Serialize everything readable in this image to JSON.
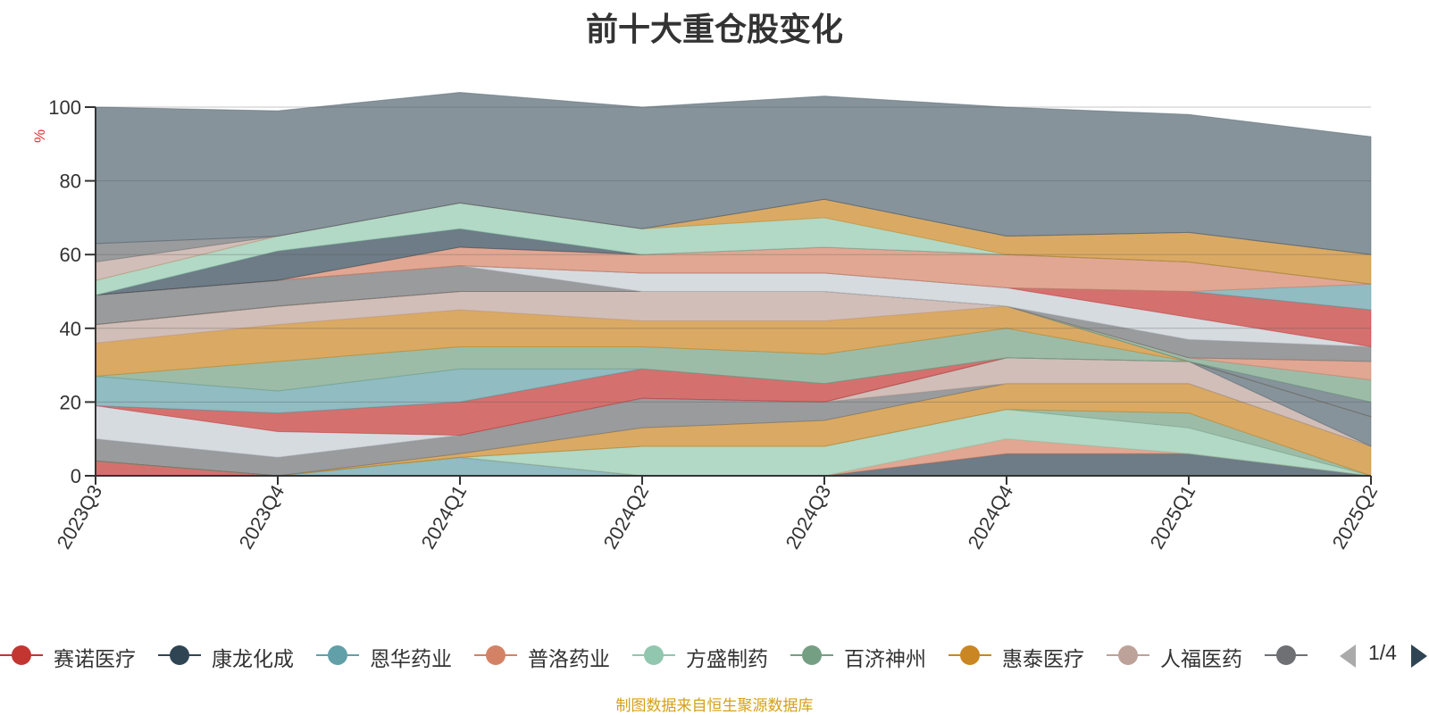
{
  "title": "前十大重仓股变化",
  "source_note": "制图数据来自恒生聚源数据库",
  "pager": {
    "text": "1/4"
  },
  "chart_data": {
    "type": "area",
    "stacked": true,
    "normalized_percent": true,
    "ylabel": "%",
    "ylim": [
      0,
      100
    ],
    "yticks": [
      0,
      20,
      40,
      60,
      80,
      100
    ],
    "grid": true,
    "legend_placement": "bottom",
    "categories": [
      "2023Q3",
      "2023Q4",
      "2024Q1",
      "2024Q2",
      "2024Q3",
      "2024Q4",
      "2025Q1",
      "2025Q2"
    ],
    "series": [
      {
        "name": "",
        "color": "#c23531",
        "values": [
          4,
          0,
          0,
          0,
          0,
          0,
          0,
          0
        ]
      },
      {
        "name": "",
        "color": "#61a0a8",
        "values": [
          0,
          0,
          5,
          0,
          0,
          0,
          0,
          0
        ]
      },
      {
        "name": "",
        "color": "#2f4554",
        "values": [
          0,
          0,
          0,
          0,
          0,
          6,
          6,
          0
        ]
      },
      {
        "name": "",
        "color": "#d48265",
        "values": [
          0,
          0,
          0,
          0,
          0,
          4,
          0,
          0
        ]
      },
      {
        "name": "",
        "color": "#91c7ae",
        "values": [
          0,
          0,
          0,
          8,
          8,
          8,
          7,
          0
        ]
      },
      {
        "name": "",
        "color": "#749f83",
        "values": [
          0,
          0,
          0,
          0,
          0,
          0,
          4,
          0
        ]
      },
      {
        "name": "",
        "color": "#ca8622",
        "values": [
          0,
          0,
          1,
          5,
          7,
          7,
          8,
          8
        ]
      },
      {
        "name": "",
        "color": "#6e7074",
        "values": [
          6,
          5,
          5,
          8,
          5,
          0,
          0,
          0
        ]
      },
      {
        "name": "",
        "color": "#bda29a",
        "values": [
          0,
          0,
          0,
          0,
          0,
          7,
          6,
          0
        ]
      },
      {
        "name": "",
        "color": "#546570",
        "values": [
          0,
          0,
          0,
          0,
          0,
          0,
          0,
          8
        ]
      },
      {
        "name": "",
        "color": "#c4ccd3",
        "values": [
          9,
          7,
          0,
          0,
          0,
          0,
          0,
          0
        ]
      },
      {
        "name": "",
        "color": "#c23531",
        "values": [
          0,
          5,
          9,
          8,
          5,
          0,
          0,
          0
        ]
      },
      {
        "name": "",
        "color": "#61a0a8",
        "values": [
          8,
          6,
          9,
          0,
          0,
          0,
          0,
          0
        ]
      },
      {
        "name": "",
        "color": "#749f83",
        "values": [
          0,
          8,
          6,
          6,
          8,
          8,
          0,
          0
        ]
      },
      {
        "name": "",
        "color": "#ca8622",
        "values": [
          9,
          10,
          10,
          7,
          9,
          6,
          0,
          0
        ]
      },
      {
        "name": "",
        "color": "#bda29a",
        "values": [
          5,
          5,
          5,
          8,
          8,
          0,
          0,
          0
        ]
      },
      {
        "name": "",
        "color": "#546570",
        "values": [
          0,
          0,
          0,
          0,
          0,
          0,
          0,
          4
        ]
      },
      {
        "name": "",
        "color": "#749f83",
        "values": [
          0,
          0,
          0,
          0,
          0,
          0,
          1,
          6
        ]
      },
      {
        "name": "",
        "color": "#d48265",
        "values": [
          0,
          0,
          0,
          0,
          0,
          0,
          0,
          5
        ]
      },
      {
        "name": "",
        "color": "#6e7074",
        "values": [
          8,
          7,
          7,
          0,
          0,
          0,
          5,
          4
        ]
      },
      {
        "name": "",
        "color": "#c4ccd3",
        "values": [
          0,
          0,
          0,
          5,
          5,
          5,
          6,
          0
        ]
      },
      {
        "name": "",
        "color": "#c23531",
        "values": [
          0,
          0,
          0,
          0,
          0,
          0,
          7,
          10
        ]
      },
      {
        "name": "",
        "color": "#61a0a8",
        "values": [
          0,
          0,
          0,
          0,
          0,
          0,
          0,
          7
        ]
      },
      {
        "name": "",
        "color": "#d48265",
        "values": [
          0,
          0,
          5,
          5,
          7,
          9,
          8,
          0
        ]
      },
      {
        "name": "",
        "color": "#2f4554",
        "values": [
          0,
          8,
          5,
          0,
          0,
          0,
          0,
          0
        ]
      },
      {
        "name": "",
        "color": "#91c7ae",
        "values": [
          4,
          4,
          7,
          7,
          8,
          0,
          0,
          0
        ]
      },
      {
        "name": "",
        "color": "#ca8622",
        "values": [
          0,
          0,
          0,
          0,
          5,
          5,
          8,
          8
        ]
      },
      {
        "name": "",
        "color": "#bda29a",
        "values": [
          5,
          0,
          0,
          0,
          0,
          0,
          0,
          0
        ]
      },
      {
        "name": "",
        "color": "#6e7074",
        "values": [
          5,
          0,
          0,
          0,
          0,
          0,
          0,
          0
        ]
      },
      {
        "name": "",
        "color": "#546570",
        "values": [
          37,
          34,
          30,
          33,
          28,
          35,
          32,
          32
        ]
      }
    ],
    "legend": [
      {
        "label": "赛诺医疗",
        "color": "#c23531"
      },
      {
        "label": "康龙化成",
        "color": "#2f4554"
      },
      {
        "label": "恩华药业",
        "color": "#61a0a8"
      },
      {
        "label": "普洛药业",
        "color": "#d48265"
      },
      {
        "label": "方盛制药",
        "color": "#91c7ae"
      },
      {
        "label": "百济神州",
        "color": "#749f83"
      },
      {
        "label": "惠泰医疗",
        "color": "#ca8622"
      },
      {
        "label": "人福医药",
        "color": "#bda29a"
      },
      {
        "label": "",
        "color": "#6e7074"
      }
    ]
  }
}
